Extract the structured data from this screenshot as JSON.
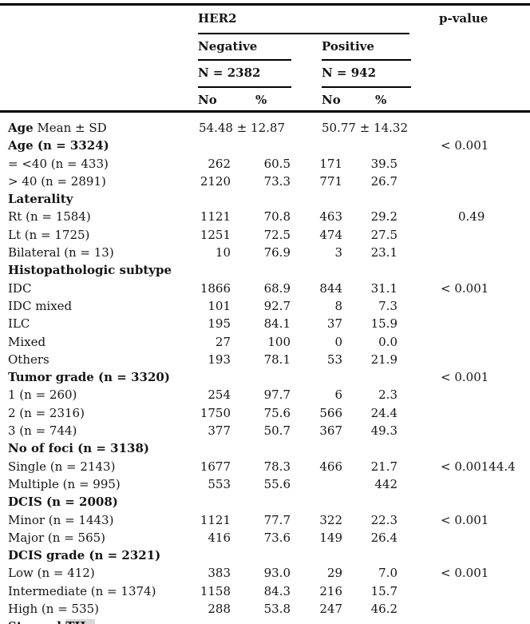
{
  "colors": {
    "text": "#151515",
    "rule": "#000000",
    "highlight": "#d8d8d8",
    "background": "#ffffff"
  },
  "table": {
    "header": {
      "group_label": "HER2",
      "p_label": "p-value",
      "neg": {
        "label": "Negative",
        "n_label": "N = 2382"
      },
      "pos": {
        "label": "Positive",
        "n_label": "N = 942"
      },
      "no_label": "No",
      "pct_label": "%"
    },
    "rows": [
      {
        "kind": "mean",
        "label_bold": "Age",
        "label": " Mean ± SD",
        "neg_span": "54.48 ± 12.87",
        "pos_span": "50.77 ± 14.32"
      },
      {
        "kind": "section",
        "label_bold": "Age (n = 3324)",
        "p": "< 0.001"
      },
      {
        "kind": "data",
        "label": "= <40 (n = 433)",
        "neg_no": "262",
        "neg_pct": "60.5",
        "pos_no": "171",
        "pos_pct": "39.5"
      },
      {
        "kind": "data",
        "label": "> 40 (n = 2891)",
        "neg_no": "2120",
        "neg_pct": "73.3",
        "pos_no": "771",
        "pos_pct": "26.7"
      },
      {
        "kind": "section",
        "label_bold": "Laterality"
      },
      {
        "kind": "data",
        "label": "Rt (n = 1584)",
        "neg_no": "1121",
        "neg_pct": "70.8",
        "pos_no": "463",
        "pos_pct": "29.2",
        "p": "0.49"
      },
      {
        "kind": "data",
        "label": "Lt (n = 1725)",
        "neg_no": "1251",
        "neg_pct": "72.5",
        "pos_no": "474",
        "pos_pct": "27.5"
      },
      {
        "kind": "data",
        "label": "Bilateral (n = 13)",
        "neg_no": "10",
        "neg_pct": "76.9",
        "pos_no": "3",
        "pos_pct": "23.1"
      },
      {
        "kind": "section",
        "label_bold": "Histopathologic subtype"
      },
      {
        "kind": "data",
        "label": "IDC",
        "neg_no": "1866",
        "neg_pct": "68.9",
        "pos_no": "844",
        "pos_pct": "31.1",
        "p": "< 0.001"
      },
      {
        "kind": "data",
        "label": "IDC mixed",
        "neg_no": "101",
        "neg_pct": "92.7",
        "pos_no": "8",
        "pos_pct": "7.3"
      },
      {
        "kind": "data",
        "label": "ILC",
        "neg_no": "195",
        "neg_pct": "84.1",
        "pos_no": "37",
        "pos_pct": "15.9"
      },
      {
        "kind": "data",
        "label": "Mixed",
        "neg_no": "27",
        "neg_pct": "100",
        "pos_no": "0",
        "pos_pct": "0.0"
      },
      {
        "kind": "data",
        "label": "Others",
        "neg_no": "193",
        "neg_pct": "78.1",
        "pos_no": "53",
        "pos_pct": "21.9"
      },
      {
        "kind": "section",
        "label_bold": "Tumor grade (n = 3320)",
        "p": "< 0.001"
      },
      {
        "kind": "data",
        "label": "1 (n = 260)",
        "neg_no": "254",
        "neg_pct": "97.7",
        "pos_no": "6",
        "pos_pct": "2.3"
      },
      {
        "kind": "data",
        "label": "2 (n = 2316)",
        "neg_no": "1750",
        "neg_pct": "75.6",
        "pos_no": "566",
        "pos_pct": "24.4"
      },
      {
        "kind": "data",
        "label": "3 (n = 744)",
        "neg_no": "377",
        "neg_pct": "50.7",
        "pos_no": "367",
        "pos_pct": "49.3"
      },
      {
        "kind": "section",
        "label_bold": "No of foci (n = 3138)"
      },
      {
        "kind": "data",
        "label": "Single (n = 2143)",
        "neg_no": "1677",
        "neg_pct": "78.3",
        "pos_no": "466",
        "pos_pct": "21.7",
        "p": "< 0.00144.4"
      },
      {
        "kind": "data",
        "label": "Multiple (n = 995)",
        "neg_no": "553",
        "neg_pct": "55.6",
        "pos_no": "",
        "pos_pct": "442"
      },
      {
        "kind": "section",
        "label_bold": "DCIS (n = 2008)"
      },
      {
        "kind": "data",
        "label": "Minor (n = 1443)",
        "neg_no": "1121",
        "neg_pct": "77.7",
        "pos_no": "322",
        "pos_pct": "22.3",
        "p": "< 0.001"
      },
      {
        "kind": "data",
        "label": "Major (n = 565)",
        "neg_no": "416",
        "neg_pct": "73.6",
        "pos_no": "149",
        "pos_pct": "26.4"
      },
      {
        "kind": "section",
        "label_bold": "DCIS grade (n = 2321)"
      },
      {
        "kind": "data",
        "label": "Low (n = 412)",
        "neg_no": "383",
        "neg_pct": "93.0",
        "pos_no": "29",
        "pos_pct": "7.0",
        "p": "< 0.001"
      },
      {
        "kind": "data",
        "label": "Intermediate (n = 1374)",
        "neg_no": "1158",
        "neg_pct": "84.3",
        "pos_no": "216",
        "pos_pct": "15.7"
      },
      {
        "kind": "data",
        "label": "High (n = 535)",
        "neg_no": "288",
        "neg_pct": "53.8",
        "pos_no": "247",
        "pos_pct": "46.2"
      },
      {
        "kind": "section",
        "label_bold": "Stromal ",
        "label_bold_highlight": "TILs",
        "clipped": true
      }
    ]
  }
}
